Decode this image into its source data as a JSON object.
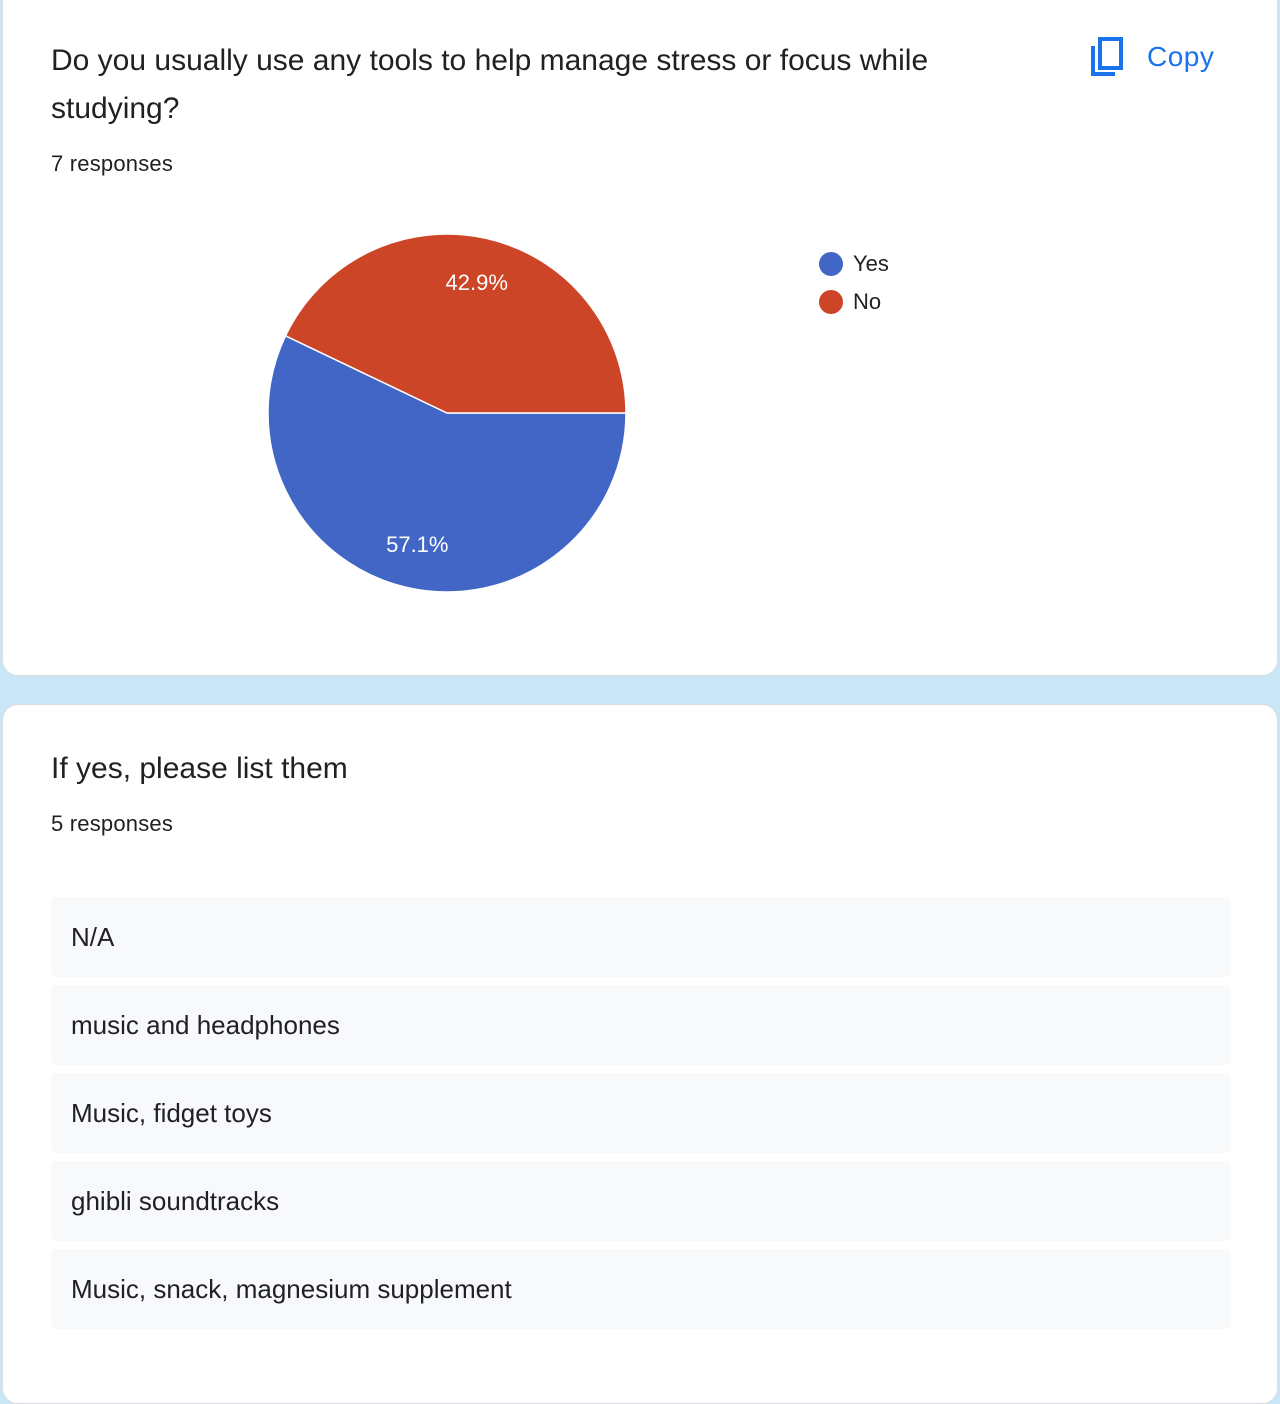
{
  "question1": {
    "title": "Do you usually use any tools to help manage stress or focus while studying?",
    "responses": "7 responses",
    "copy_label": "Copy",
    "copy_icon": "copy-icon"
  },
  "chart_data": {
    "type": "pie",
    "categories": [
      "Yes",
      "No"
    ],
    "values": [
      57.1,
      42.9
    ],
    "labels": [
      "57.1%",
      "42.9%"
    ],
    "colors": [
      "#4166c6",
      "#cc4527"
    ],
    "legend": [
      "Yes",
      "No"
    ],
    "legend_position": "right"
  },
  "question2": {
    "title": "If yes, please list them",
    "responses": "5 responses",
    "answers": [
      "N/A",
      "music and headphones",
      "Music, fidget toys",
      "ghibli soundtracks",
      "Music, snack, magnesium supplement"
    ]
  }
}
